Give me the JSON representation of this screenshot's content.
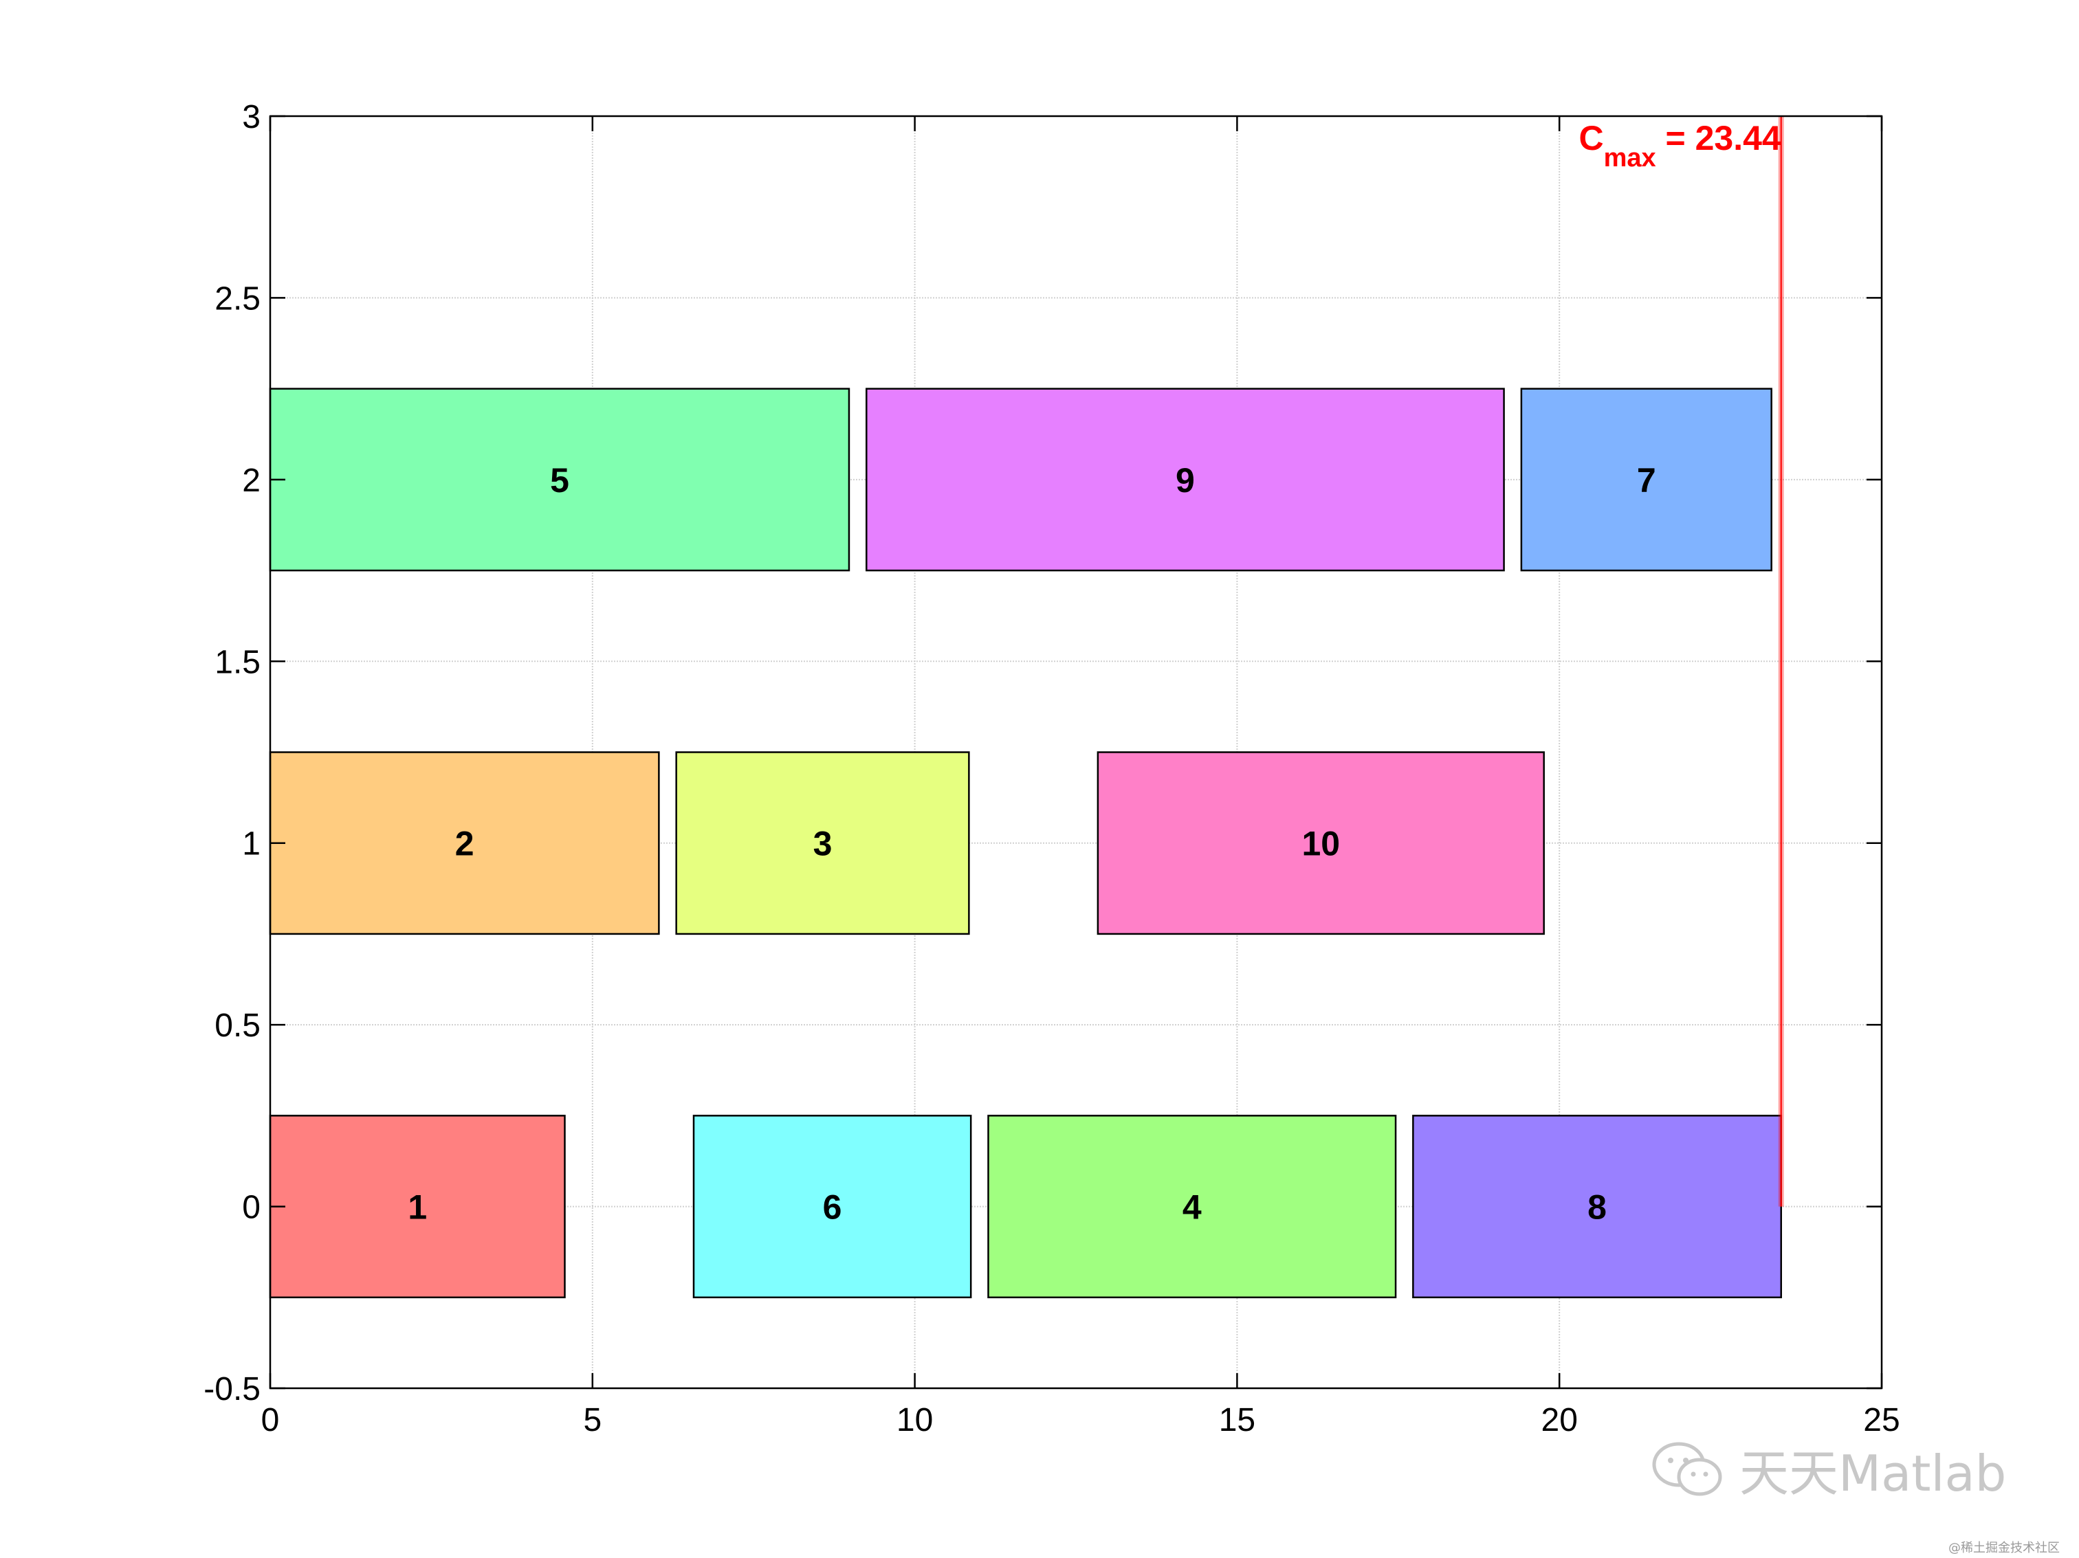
{
  "chart_data": {
    "type": "gantt",
    "xlim": [
      0,
      25
    ],
    "ylim": [
      -0.5,
      3
    ],
    "xticks": [
      "0",
      "5",
      "10",
      "15",
      "20",
      "25"
    ],
    "yticks": [
      "-0.5",
      "0",
      "0.5",
      "1",
      "1.5",
      "2",
      "2.5",
      "3"
    ],
    "xtick_values": [
      0,
      5,
      10,
      15,
      20,
      25
    ],
    "ytick_values": [
      -0.5,
      0,
      0.5,
      1,
      1.5,
      2,
      2.5,
      3
    ],
    "grid": true,
    "bar_height": 0.5,
    "tasks": [
      {
        "label": "1",
        "machine": 0,
        "start": 0,
        "end": 4.57,
        "color": "#ff8080"
      },
      {
        "label": "6",
        "machine": 0,
        "start": 6.57,
        "end": 10.87,
        "color": "#80ffff"
      },
      {
        "label": "4",
        "machine": 0,
        "start": 11.14,
        "end": 17.46,
        "color": "#a0ff80"
      },
      {
        "label": "8",
        "machine": 0,
        "start": 17.73,
        "end": 23.44,
        "color": "#9980ff"
      },
      {
        "label": "2",
        "machine": 1,
        "start": 0,
        "end": 6.03,
        "color": "#ffcc80"
      },
      {
        "label": "3",
        "machine": 1,
        "start": 6.3,
        "end": 10.84,
        "color": "#e6ff80"
      },
      {
        "label": "10",
        "machine": 1,
        "start": 12.84,
        "end": 19.76,
        "color": "#ff80c8"
      },
      {
        "label": "5",
        "machine": 2,
        "start": 0,
        "end": 8.98,
        "color": "#80ffb0"
      },
      {
        "label": "9",
        "machine": 2,
        "start": 9.25,
        "end": 19.14,
        "color": "#e680ff"
      },
      {
        "label": "7",
        "machine": 2,
        "start": 19.41,
        "end": 23.29,
        "color": "#80b3ff"
      }
    ],
    "cmax": {
      "value": 23.44,
      "label_main": "C",
      "label_sub": "max",
      "label_rest": " = 23.44",
      "color": "#ff0000"
    }
  },
  "watermark": {
    "text": "天天Matlab",
    "icon": "wechat-icon"
  },
  "footer_mark": "@稀土掘金技术社区"
}
